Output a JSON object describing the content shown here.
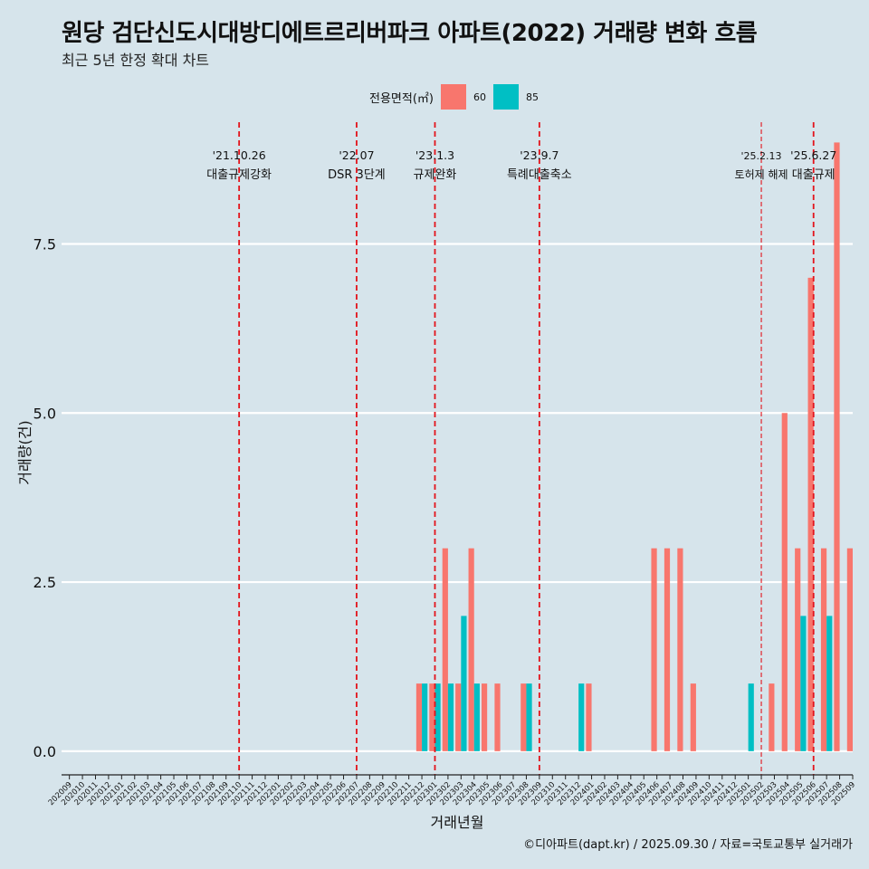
{
  "title": "원당 검단신도시대방디에트르리버파크 아파트(2022) 거래량 변화 흐름",
  "subtitle": "최근 5년 한정 확대 차트",
  "caption": "©디아파트(dapt.kr) / 2025.09.30 / 자료=국토교통부 실거래가",
  "colors": {
    "background": "#d6e4eb",
    "series_60": "#f8766d",
    "series_85": "#00bfc4",
    "event_line": "#e3131b",
    "grid": "#ffffff"
  },
  "chart_data": {
    "type": "bar",
    "xlabel": "거래년월",
    "ylabel": "거래량(건)",
    "ylim": [
      -0.35,
      9.3
    ],
    "yticks": [
      0.0,
      2.5,
      5.0,
      7.5
    ],
    "ytick_labels": [
      "0.0",
      "2.5",
      "5.0",
      "7.5"
    ],
    "legend": {
      "title": "전용면적(㎡)",
      "position": "top"
    },
    "categories": [
      "202009",
      "202010",
      "202011",
      "202012",
      "202101",
      "202102",
      "202103",
      "202104",
      "202105",
      "202106",
      "202107",
      "202108",
      "202109",
      "202110",
      "202111",
      "202112",
      "202201",
      "202202",
      "202203",
      "202204",
      "202205",
      "202206",
      "202207",
      "202208",
      "202209",
      "202210",
      "202211",
      "202212",
      "202301",
      "202302",
      "202303",
      "202304",
      "202305",
      "202306",
      "202307",
      "202308",
      "202309",
      "202310",
      "202311",
      "202312",
      "202401",
      "202402",
      "202403",
      "202404",
      "202405",
      "202406",
      "202407",
      "202408",
      "202409",
      "202410",
      "202411",
      "202412",
      "202501",
      "202502",
      "202503",
      "202504",
      "202505",
      "202506",
      "202507",
      "202508",
      "202509"
    ],
    "series": [
      {
        "name": "60",
        "values": [
          0,
          0,
          0,
          0,
          0,
          0,
          0,
          0,
          0,
          0,
          0,
          0,
          0,
          0,
          0,
          0,
          0,
          0,
          0,
          0,
          0,
          0,
          0,
          0,
          0,
          0,
          0,
          1,
          1,
          3,
          1,
          3,
          1,
          1,
          0,
          1,
          0,
          0,
          0,
          0,
          1,
          0,
          0,
          0,
          0,
          3,
          3,
          3,
          1,
          0,
          0,
          0,
          0,
          0,
          1,
          5,
          3,
          7,
          3,
          9,
          3
        ]
      },
      {
        "name": "85",
        "values": [
          0,
          0,
          0,
          0,
          0,
          0,
          0,
          0,
          0,
          0,
          0,
          0,
          0,
          0,
          0,
          0,
          0,
          0,
          0,
          0,
          0,
          0,
          0,
          0,
          0,
          0,
          0,
          1,
          1,
          1,
          2,
          1,
          0,
          0,
          0,
          1,
          0,
          0,
          0,
          1,
          0,
          0,
          0,
          0,
          0,
          0,
          0,
          0,
          0,
          0,
          0,
          0,
          1,
          0,
          0,
          0,
          2,
          0,
          2,
          0,
          0
        ]
      }
    ],
    "events": [
      {
        "month": "202110",
        "date": "'21.10.26",
        "label": "대출규제강화",
        "style": "major"
      },
      {
        "month": "202207",
        "date": "'22.07",
        "label": "DSR 3단계",
        "style": "major"
      },
      {
        "month": "202301",
        "date": "'23.1.3",
        "label": "규제완화",
        "style": "major"
      },
      {
        "month": "202309",
        "date": "'23.9.7",
        "label": "특례대출축소",
        "style": "major"
      },
      {
        "month": "202502",
        "date": "'25.2.13",
        "label": "토허제 해제",
        "style": "minor"
      },
      {
        "month": "202506",
        "date": "'25.6.27",
        "label": "대출규제",
        "style": "major"
      }
    ]
  }
}
